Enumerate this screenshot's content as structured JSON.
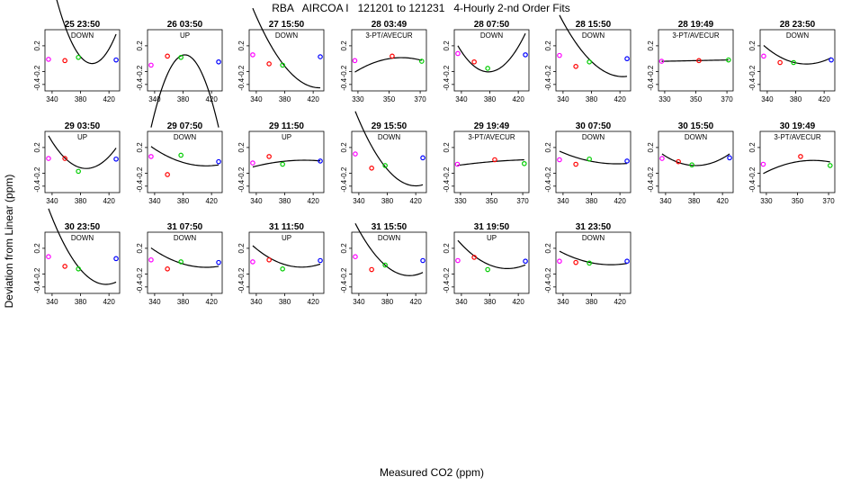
{
  "figure": {
    "title": "RBA   AIRCOA I   121201 to 121231   4-Hourly 2-nd Order Fits",
    "xlabel": "Measured CO2 (ppm)",
    "ylabel": "Deviation from Linear (ppm)"
  },
  "colors": {
    "fit_line": "#000000",
    "point_low": "#ff00ff",
    "point_mid1": "#ff0000",
    "point_mid2": "#00cc00",
    "point_high": "#0000ff"
  },
  "chart_data": [
    {
      "type": "scatter",
      "title": "25 23:50",
      "subtitle": "DOWN",
      "xlim": [
        330,
        435
      ],
      "ylim": [
        -0.5,
        0.45
      ],
      "xticks": [
        340,
        380,
        420
      ],
      "yticks": [
        0.2,
        -0.2,
        -0.4
      ],
      "points": {
        "x": [
          335,
          358,
          377,
          430
        ],
        "y": [
          -0.01,
          -0.03,
          0.02,
          -0.02
        ]
      },
      "fit": [
        0.0004,
        -0.011,
        0.0
      ]
    },
    {
      "type": "scatter",
      "title": "26 03:50",
      "subtitle": "UP",
      "xlim": [
        330,
        435
      ],
      "ylim": [
        -0.5,
        0.45
      ],
      "xticks": [
        340,
        380,
        420
      ],
      "yticks": [
        0.2,
        -0.2,
        -0.4
      ],
      "points": {
        "x": [
          335,
          358,
          377,
          430
        ],
        "y": [
          -0.1,
          0.04,
          0.02,
          -0.05
        ]
      },
      "fit": [
        -0.0005,
        0.0,
        0.06
      ]
    },
    {
      "type": "scatter",
      "title": "27 15:50",
      "subtitle": "DOWN",
      "xlim": [
        330,
        435
      ],
      "ylim": [
        -0.5,
        0.45
      ],
      "xticks": [
        340,
        380,
        420
      ],
      "yticks": [
        0.2,
        -0.2,
        -0.4
      ],
      "points": {
        "x": [
          335,
          358,
          377,
          430
        ],
        "y": [
          0.06,
          -0.08,
          -0.1,
          0.03
        ]
      },
      "fit": [
        0.00014,
        -0.013,
        -0.15
      ]
    },
    {
      "type": "scatter",
      "title": "28 03:49",
      "subtitle": "3-PT/AVECUR",
      "xlim": [
        326,
        374
      ],
      "ylim": [
        -0.5,
        0.45
      ],
      "xticks": [
        330,
        350,
        370
      ],
      "yticks": [
        0.2,
        -0.2,
        -0.4
      ],
      "points": {
        "x": [
          328,
          352,
          371
        ],
        "y": [
          -0.03,
          0.04,
          -0.04
        ]
      },
      "fit": [
        -0.00025,
        0.004,
        0.0
      ]
    },
    {
      "type": "scatter",
      "title": "28 07:50",
      "subtitle": "DOWN",
      "xlim": [
        330,
        435
      ],
      "ylim": [
        -0.5,
        0.45
      ],
      "xticks": [
        340,
        380,
        420
      ],
      "yticks": [
        0.2,
        -0.2,
        -0.4
      ],
      "points": {
        "x": [
          335,
          358,
          377,
          430
        ],
        "y": [
          0.08,
          -0.05,
          -0.15,
          0.06
        ]
      },
      "fit": [
        0.00022,
        0.002,
        -0.2
      ]
    },
    {
      "type": "scatter",
      "title": "28 15:50",
      "subtitle": "DOWN",
      "xlim": [
        330,
        435
      ],
      "ylim": [
        -0.5,
        0.45
      ],
      "xticks": [
        340,
        380,
        420
      ],
      "yticks": [
        0.2,
        -0.2,
        -0.4
      ],
      "points": {
        "x": [
          335,
          358,
          377,
          430
        ],
        "y": [
          0.05,
          -0.12,
          -0.05,
          0.0
        ]
      },
      "fit": [
        0.00012,
        -0.01,
        -0.07
      ]
    },
    {
      "type": "scatter",
      "title": "28 19:49",
      "subtitle": "3-PT/AVECUR",
      "xlim": [
        326,
        374
      ],
      "ylim": [
        -0.5,
        0.45
      ],
      "xticks": [
        330,
        350,
        370
      ],
      "yticks": [
        0.2,
        -0.2,
        -0.4
      ],
      "points": {
        "x": [
          328,
          352,
          371
        ],
        "y": [
          -0.04,
          -0.03,
          -0.02
        ]
      },
      "fit": [
        0.0,
        0.0005,
        -0.03
      ]
    },
    {
      "type": "scatter",
      "title": "28 23:50",
      "subtitle": "DOWN",
      "xlim": [
        330,
        435
      ],
      "ylim": [
        -0.5,
        0.45
      ],
      "xticks": [
        340,
        380,
        420
      ],
      "yticks": [
        0.2,
        -0.2,
        -0.4
      ],
      "points": {
        "x": [
          335,
          358,
          377,
          430
        ],
        "y": [
          0.04,
          -0.06,
          -0.06,
          -0.02
        ]
      },
      "fit": [
        8e-05,
        -0.002,
        -0.07
      ]
    },
    {
      "type": "scatter",
      "title": "29 03:50",
      "subtitle": "UP",
      "xlim": [
        330,
        435
      ],
      "ylim": [
        -0.5,
        0.45
      ],
      "xticks": [
        340,
        380,
        420
      ],
      "yticks": [
        0.2,
        -0.2,
        -0.4
      ],
      "points": {
        "x": [
          335,
          358,
          377,
          430
        ],
        "y": [
          0.03,
          0.03,
          -0.17,
          0.02
        ]
      },
      "fit": [
        0.00018,
        -0.002,
        -0.12
      ]
    },
    {
      "type": "scatter",
      "title": "29 07:50",
      "subtitle": "DOWN",
      "xlim": [
        330,
        435
      ],
      "ylim": [
        -0.5,
        0.45
      ],
      "xticks": [
        340,
        380,
        420
      ],
      "yticks": [
        0.2,
        -0.2,
        -0.4
      ],
      "points": {
        "x": [
          335,
          358,
          377,
          430
        ],
        "y": [
          0.06,
          -0.22,
          0.08,
          -0.02
        ]
      },
      "fit": [
        5e-05,
        -0.003,
        -0.04
      ]
    },
    {
      "type": "scatter",
      "title": "29 11:50",
      "subtitle": "UP",
      "xlim": [
        330,
        435
      ],
      "ylim": [
        -0.5,
        0.45
      ],
      "xticks": [
        340,
        380,
        420
      ],
      "yticks": [
        0.2,
        -0.2,
        -0.4
      ],
      "points": {
        "x": [
          335,
          358,
          377,
          430
        ],
        "y": [
          -0.04,
          0.06,
          -0.06,
          -0.01
        ]
      },
      "fit": [
        -2e-05,
        0.001,
        -0.01
      ]
    },
    {
      "type": "scatter",
      "title": "29 15:50",
      "subtitle": "DOWN",
      "xlim": [
        330,
        435
      ],
      "ylim": [
        -0.5,
        0.45
      ],
      "xticks": [
        340,
        380,
        420
      ],
      "yticks": [
        0.2,
        -0.2,
        -0.4
      ],
      "points": {
        "x": [
          335,
          358,
          377,
          430
        ],
        "y": [
          0.1,
          -0.12,
          -0.08,
          0.04
        ]
      },
      "fit": [
        0.00016,
        -0.012,
        -0.17
      ]
    },
    {
      "type": "scatter",
      "title": "29 19:49",
      "subtitle": "3-PT/AVECUR",
      "xlim": [
        326,
        374
      ],
      "ylim": [
        -0.5,
        0.45
      ],
      "xticks": [
        330,
        350,
        370
      ],
      "yticks": [
        0.2,
        -0.2,
        -0.4
      ],
      "points": {
        "x": [
          328,
          352,
          371
        ],
        "y": [
          -0.06,
          0.01,
          -0.05
        ]
      },
      "fit": [
        -3e-05,
        0.002,
        -0.02
      ]
    },
    {
      "type": "scatter",
      "title": "30 07:50",
      "subtitle": "DOWN",
      "xlim": [
        330,
        435
      ],
      "ylim": [
        -0.5,
        0.45
      ],
      "xticks": [
        340,
        380,
        420
      ],
      "yticks": [
        0.2,
        -0.2,
        -0.4
      ],
      "points": {
        "x": [
          335,
          358,
          377,
          430
        ],
        "y": [
          0.01,
          -0.06,
          0.02,
          -0.01
        ]
      },
      "fit": [
        3e-05,
        -0.002,
        -0.02
      ]
    },
    {
      "type": "scatter",
      "title": "30 15:50",
      "subtitle": "DOWN",
      "xlim": [
        330,
        435
      ],
      "ylim": [
        -0.5,
        0.45
      ],
      "xticks": [
        340,
        380,
        420
      ],
      "yticks": [
        0.2,
        -0.2,
        -0.4
      ],
      "points": {
        "x": [
          335,
          358,
          377,
          430
        ],
        "y": [
          0.03,
          -0.02,
          -0.07,
          0.04
        ]
      },
      "fit": [
        8e-05,
        0.0,
        -0.08
      ]
    },
    {
      "type": "scatter",
      "title": "30 19:49",
      "subtitle": "3-PT/AVECUR",
      "xlim": [
        326,
        374
      ],
      "ylim": [
        -0.5,
        0.45
      ],
      "xticks": [
        330,
        350,
        370
      ],
      "yticks": [
        0.2,
        -0.2,
        -0.4
      ],
      "points": {
        "x": [
          328,
          352,
          371
        ],
        "y": [
          -0.06,
          0.06,
          -0.08
        ]
      },
      "fit": [
        -0.0002,
        0.004,
        -0.02
      ]
    },
    {
      "type": "scatter",
      "title": "30 23:50",
      "subtitle": "DOWN",
      "xlim": [
        330,
        435
      ],
      "ylim": [
        -0.5,
        0.45
      ],
      "xticks": [
        340,
        380,
        420
      ],
      "yticks": [
        0.2,
        -0.2,
        -0.4
      ],
      "points": {
        "x": [
          335,
          358,
          377,
          430
        ],
        "y": [
          0.07,
          -0.08,
          -0.12,
          0.04
        ]
      },
      "fit": [
        0.00018,
        -0.012,
        -0.16
      ]
    },
    {
      "type": "scatter",
      "title": "31 07:50",
      "subtitle": "DOWN",
      "xlim": [
        330,
        435
      ],
      "ylim": [
        -0.5,
        0.45
      ],
      "xticks": [
        340,
        380,
        420
      ],
      "yticks": [
        0.2,
        -0.2,
        -0.4
      ],
      "points": {
        "x": [
          335,
          358,
          377,
          430
        ],
        "y": [
          0.02,
          -0.12,
          -0.01,
          -0.02
        ]
      },
      "fit": [
        5e-05,
        -0.003,
        -0.05
      ]
    },
    {
      "type": "scatter",
      "title": "31 11:50",
      "subtitle": "UP",
      "xlim": [
        330,
        435
      ],
      "ylim": [
        -0.5,
        0.45
      ],
      "xticks": [
        340,
        380,
        420
      ],
      "yticks": [
        0.2,
        -0.2,
        -0.4
      ],
      "points": {
        "x": [
          335,
          358,
          377,
          430
        ],
        "y": [
          -0.01,
          0.02,
          -0.12,
          0.01
        ]
      },
      "fit": [
        7e-05,
        -0.003,
        -0.06
      ]
    },
    {
      "type": "scatter",
      "title": "31 15:50",
      "subtitle": "DOWN",
      "xlim": [
        330,
        435
      ],
      "ylim": [
        -0.5,
        0.45
      ],
      "xticks": [
        340,
        380,
        420
      ],
      "yticks": [
        0.2,
        -0.2,
        -0.4
      ],
      "points": {
        "x": [
          335,
          358,
          377,
          430
        ],
        "y": [
          0.07,
          -0.13,
          -0.06,
          0.01
        ]
      },
      "fit": [
        0.00014,
        -0.008,
        -0.11
      ]
    },
    {
      "type": "scatter",
      "title": "31 19:50",
      "subtitle": "UP",
      "xlim": [
        330,
        435
      ],
      "ylim": [
        -0.5,
        0.45
      ],
      "xticks": [
        340,
        380,
        420
      ],
      "yticks": [
        0.2,
        -0.2,
        -0.4
      ],
      "points": {
        "x": [
          335,
          358,
          377,
          430
        ],
        "y": [
          0.01,
          0.06,
          -0.13,
          0.0
        ]
      },
      "fit": [
        9e-05,
        -0.004,
        -0.07
      ]
    },
    {
      "type": "scatter",
      "title": "31 23:50",
      "subtitle": "DOWN",
      "xlim": [
        330,
        435
      ],
      "ylim": [
        -0.5,
        0.45
      ],
      "xticks": [
        340,
        380,
        420
      ],
      "yticks": [
        0.2,
        -0.2,
        -0.4
      ],
      "points": {
        "x": [
          335,
          358,
          377,
          430
        ],
        "y": [
          0.0,
          -0.02,
          -0.03,
          0.0
        ]
      },
      "fit": [
        4e-05,
        -0.002,
        -0.03
      ]
    }
  ]
}
